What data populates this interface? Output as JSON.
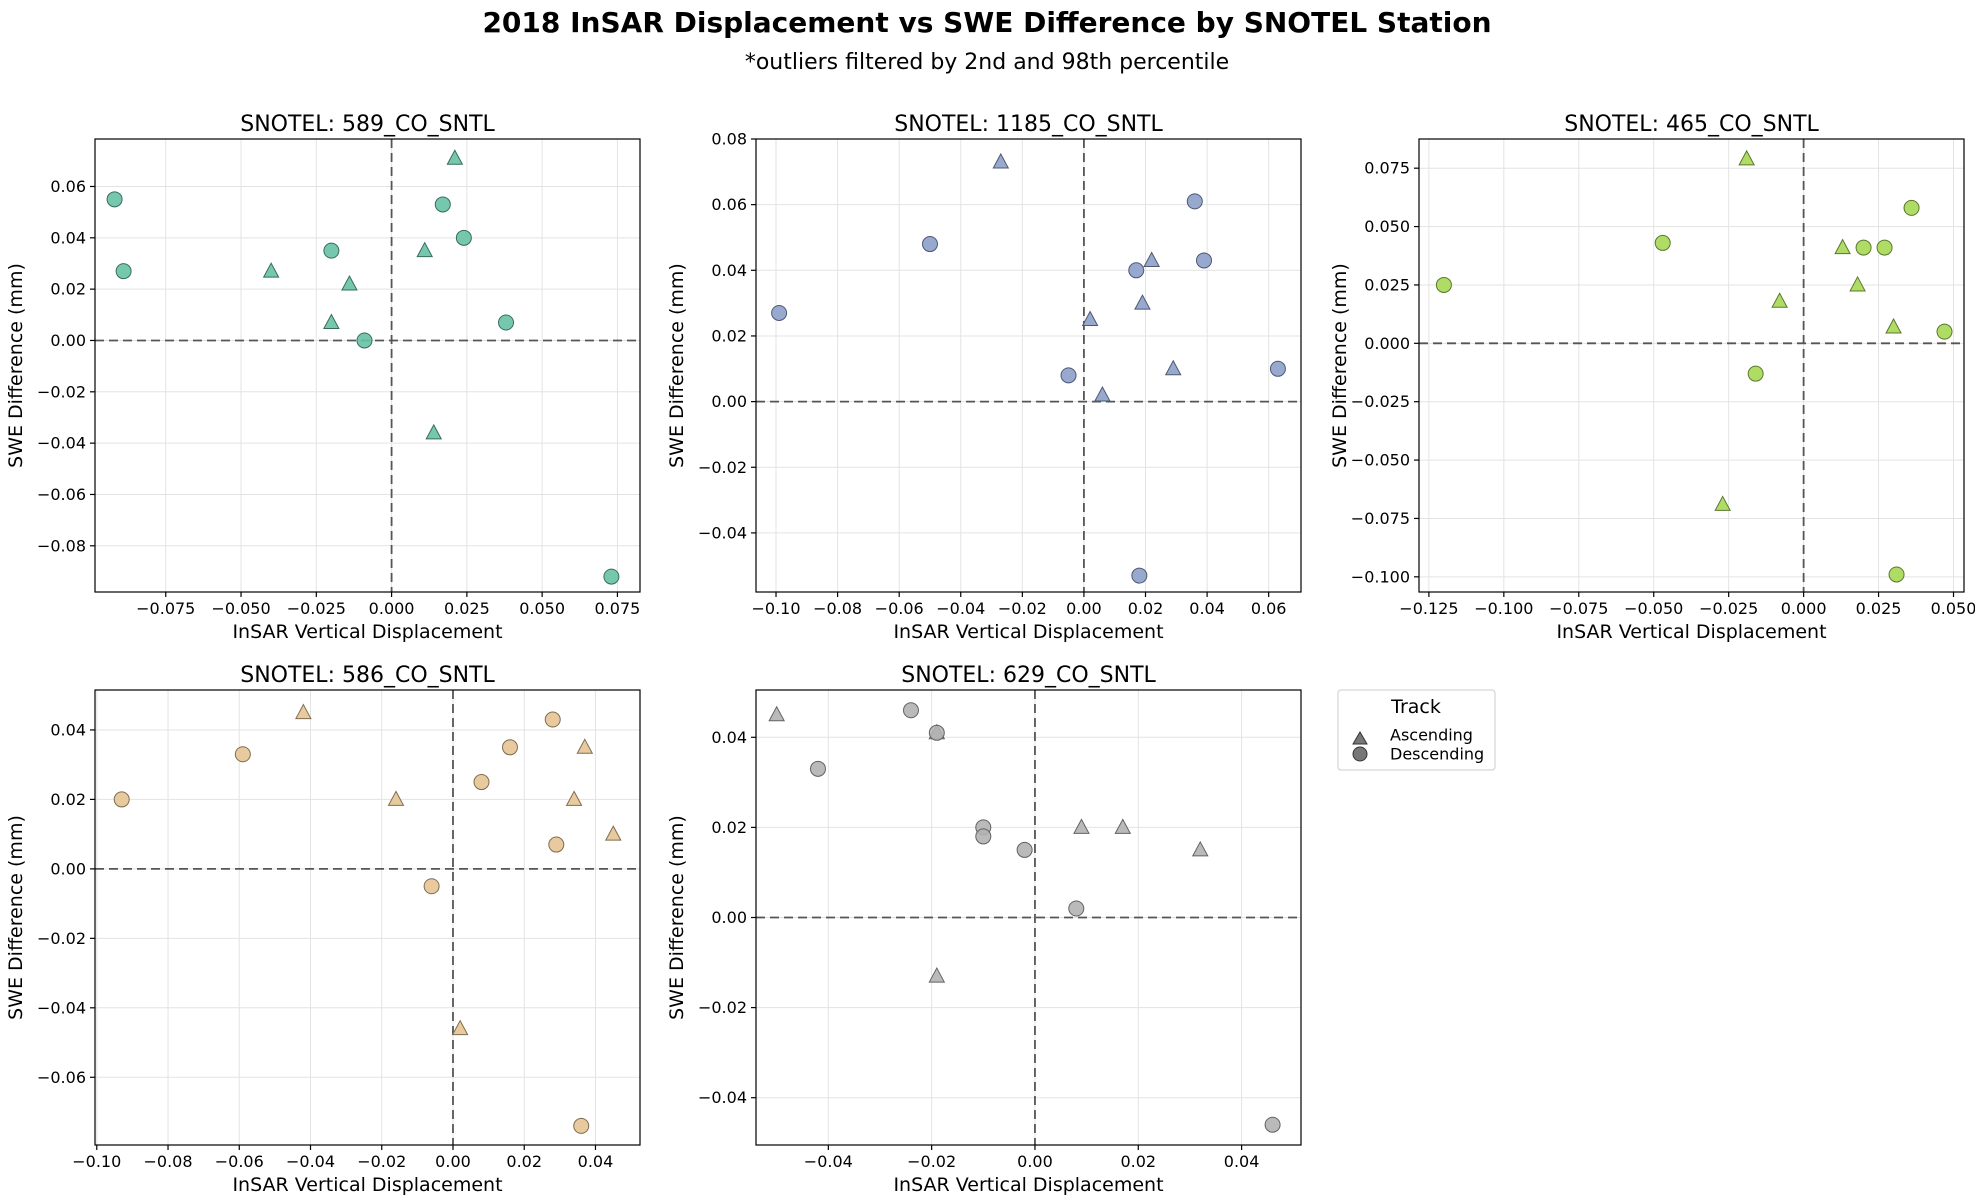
{
  "figure": {
    "title": "2018 InSAR Displacement vs SWE Difference by SNOTEL Station",
    "subtitle": "*outliers filtered by 2nd and 98th percentile"
  },
  "legend": {
    "title": "Track",
    "placement": "right of bottom row",
    "entries": [
      {
        "label": "Ascending",
        "marker": "triangle"
      },
      {
        "label": "Descending",
        "marker": "circle"
      }
    ]
  },
  "chart_data": [
    {
      "type": "scatter",
      "title": "SNOTEL: 589_CO_SNTL",
      "xlabel": "InSAR Vertical Displacement",
      "ylabel": "SWE Difference (mm)",
      "color": "#66c2a5",
      "xlim": [
        -0.0985,
        0.0825
      ],
      "ylim": [
        -0.098,
        0.0785
      ],
      "xticks": [
        -0.075,
        -0.05,
        -0.025,
        0.0,
        0.025,
        0.05,
        0.075
      ],
      "xtick_labels": [
        "−0.075",
        "−0.050",
        "−0.025",
        "0.000",
        "0.025",
        "0.050",
        "0.075"
      ],
      "yticks": [
        -0.08,
        -0.06,
        -0.04,
        -0.02,
        0.0,
        0.02,
        0.04,
        0.06
      ],
      "ytick_labels": [
        "−0.08",
        "−0.06",
        "−0.04",
        "−0.02",
        "0.00",
        "0.02",
        "0.04",
        "0.06"
      ],
      "grid": true,
      "reference_lines": {
        "x": 0,
        "y": 0
      },
      "series": [
        {
          "name": "Ascending",
          "marker": "triangle",
          "points": [
            [
              0.021,
              0.071
            ],
            [
              -0.04,
              0.027
            ],
            [
              -0.014,
              0.022
            ],
            [
              -0.02,
              0.007
            ],
            [
              0.011,
              0.035
            ],
            [
              0.014,
              -0.036
            ]
          ]
        },
        {
          "name": "Descending",
          "marker": "circle",
          "points": [
            [
              -0.092,
              0.055
            ],
            [
              -0.089,
              0.027
            ],
            [
              -0.02,
              0.035
            ],
            [
              0.017,
              0.053
            ],
            [
              0.024,
              0.04
            ],
            [
              -0.009,
              0.0
            ],
            [
              0.038,
              0.007
            ],
            [
              0.073,
              -0.092
            ]
          ]
        }
      ]
    },
    {
      "type": "scatter",
      "title": "SNOTEL: 1185_CO_SNTL",
      "xlabel": "InSAR Vertical Displacement",
      "ylabel": "SWE Difference (mm)",
      "color": "#8da0cb",
      "xlim": [
        -0.1065,
        0.0705
      ],
      "ylim": [
        -0.058,
        0.08
      ],
      "xticks": [
        -0.1,
        -0.08,
        -0.06,
        -0.04,
        -0.02,
        0.0,
        0.02,
        0.04,
        0.06
      ],
      "xtick_labels": [
        "−0.10",
        "−0.08",
        "−0.06",
        "−0.04",
        "−0.02",
        "0.00",
        "0.02",
        "0.04",
        "0.06"
      ],
      "yticks": [
        -0.04,
        -0.02,
        0.0,
        0.02,
        0.04,
        0.06,
        0.08
      ],
      "ytick_labels": [
        "−0.04",
        "−0.02",
        "0.00",
        "0.02",
        "0.04",
        "0.06",
        "0.08"
      ],
      "grid": true,
      "reference_lines": {
        "x": 0,
        "y": 0
      },
      "series": [
        {
          "name": "Ascending",
          "marker": "triangle",
          "points": [
            [
              -0.027,
              0.073
            ],
            [
              0.002,
              0.025
            ],
            [
              0.019,
              0.03
            ],
            [
              0.022,
              0.043
            ],
            [
              0.029,
              0.01
            ],
            [
              0.006,
              0.002
            ]
          ]
        },
        {
          "name": "Descending",
          "marker": "circle",
          "points": [
            [
              -0.099,
              0.027
            ],
            [
              -0.05,
              0.048
            ],
            [
              -0.005,
              0.008
            ],
            [
              0.017,
              0.04
            ],
            [
              0.036,
              0.061
            ],
            [
              0.039,
              0.043
            ],
            [
              0.063,
              0.01
            ],
            [
              0.018,
              -0.053
            ]
          ]
        }
      ]
    },
    {
      "type": "scatter",
      "title": "SNOTEL: 465_CO_SNTL",
      "xlabel": "InSAR Vertical Displacement",
      "ylabel": "SWE Difference (mm)",
      "color": "#a6d854",
      "xlim": [
        -0.1283,
        0.0535
      ],
      "ylim": [
        -0.1065,
        0.0875
      ],
      "xticks": [
        -0.125,
        -0.1,
        -0.075,
        -0.05,
        -0.025,
        0.0,
        0.025,
        0.05
      ],
      "xtick_labels": [
        "−0.125",
        "−0.100",
        "−0.075",
        "−0.050",
        "−0.025",
        "0.000",
        "0.025",
        "0.050"
      ],
      "yticks": [
        -0.1,
        -0.075,
        -0.05,
        -0.025,
        0.0,
        0.025,
        0.05,
        0.075
      ],
      "ytick_labels": [
        "−0.100",
        "−0.075",
        "−0.050",
        "−0.025",
        "0.000",
        "0.025",
        "0.050",
        "0.075"
      ],
      "grid": true,
      "reference_lines": {
        "x": 0,
        "y": 0
      },
      "series": [
        {
          "name": "Ascending",
          "marker": "triangle",
          "points": [
            [
              -0.019,
              0.079
            ],
            [
              0.013,
              0.041
            ],
            [
              0.018,
              0.025
            ],
            [
              -0.008,
              0.018
            ],
            [
              0.03,
              0.007
            ],
            [
              -0.027,
              -0.069
            ]
          ]
        },
        {
          "name": "Descending",
          "marker": "circle",
          "points": [
            [
              -0.12,
              0.025
            ],
            [
              -0.047,
              0.043
            ],
            [
              0.02,
              0.041
            ],
            [
              0.027,
              0.041
            ],
            [
              0.036,
              0.058
            ],
            [
              0.047,
              0.005
            ],
            [
              -0.016,
              -0.013
            ],
            [
              0.031,
              -0.099
            ]
          ]
        }
      ]
    },
    {
      "type": "scatter",
      "title": "SNOTEL: 586_CO_SNTL",
      "xlabel": "InSAR Vertical Displacement",
      "ylabel": "SWE Difference (mm)",
      "color": "#e5c494",
      "xlim": [
        -0.1005,
        0.0525
      ],
      "ylim": [
        -0.0795,
        0.0515
      ],
      "xticks": [
        -0.1,
        -0.08,
        -0.06,
        -0.04,
        -0.02,
        0.0,
        0.02,
        0.04
      ],
      "xtick_labels": [
        "−0.10",
        "−0.08",
        "−0.06",
        "−0.04",
        "−0.02",
        "0.00",
        "0.02",
        "0.04"
      ],
      "yticks": [
        -0.06,
        -0.04,
        -0.02,
        0.0,
        0.02,
        0.04
      ],
      "ytick_labels": [
        "−0.06",
        "−0.04",
        "−0.02",
        "0.00",
        "0.02",
        "0.04"
      ],
      "grid": true,
      "reference_lines": {
        "x": 0,
        "y": 0
      },
      "series": [
        {
          "name": "Ascending",
          "marker": "triangle",
          "points": [
            [
              -0.042,
              0.045
            ],
            [
              -0.016,
              0.02
            ],
            [
              0.034,
              0.02
            ],
            [
              0.037,
              0.035
            ],
            [
              0.045,
              0.01
            ],
            [
              0.002,
              -0.046
            ]
          ]
        },
        {
          "name": "Descending",
          "marker": "circle",
          "points": [
            [
              -0.093,
              0.02
            ],
            [
              -0.059,
              0.033
            ],
            [
              -0.006,
              -0.005
            ],
            [
              0.008,
              0.025
            ],
            [
              0.016,
              0.035
            ],
            [
              0.028,
              0.043
            ],
            [
              0.029,
              0.007
            ],
            [
              0.036,
              -0.074
            ]
          ]
        }
      ]
    },
    {
      "type": "scatter",
      "title": "SNOTEL: 629_CO_SNTL",
      "xlabel": "InSAR Vertical Displacement",
      "ylabel": "SWE Difference (mm)",
      "color": "#b3b3b3",
      "xlim": [
        -0.054,
        0.0515
      ],
      "ylim": [
        -0.0505,
        0.0505
      ],
      "xticks": [
        -0.04,
        -0.02,
        0.0,
        0.02,
        0.04
      ],
      "xtick_labels": [
        "−0.04",
        "−0.02",
        "0.00",
        "0.02",
        "0.04"
      ],
      "yticks": [
        -0.04,
        -0.02,
        0.0,
        0.02,
        0.04
      ],
      "ytick_labels": [
        "−0.04",
        "−0.02",
        "0.00",
        "0.02",
        "0.04"
      ],
      "grid": true,
      "reference_lines": {
        "x": 0,
        "y": 0
      },
      "series": [
        {
          "name": "Ascending",
          "marker": "triangle",
          "points": [
            [
              -0.05,
              0.045
            ],
            [
              -0.019,
              0.041
            ],
            [
              0.009,
              0.02
            ],
            [
              0.017,
              0.02
            ],
            [
              0.032,
              0.015
            ],
            [
              -0.019,
              -0.013
            ]
          ]
        },
        {
          "name": "Descending",
          "marker": "circle",
          "points": [
            [
              -0.024,
              0.046
            ],
            [
              -0.019,
              0.041
            ],
            [
              -0.042,
              0.033
            ],
            [
              -0.01,
              0.02
            ],
            [
              -0.01,
              0.018
            ],
            [
              -0.002,
              0.015
            ],
            [
              0.008,
              0.002
            ],
            [
              0.046,
              -0.046
            ]
          ]
        }
      ]
    }
  ]
}
